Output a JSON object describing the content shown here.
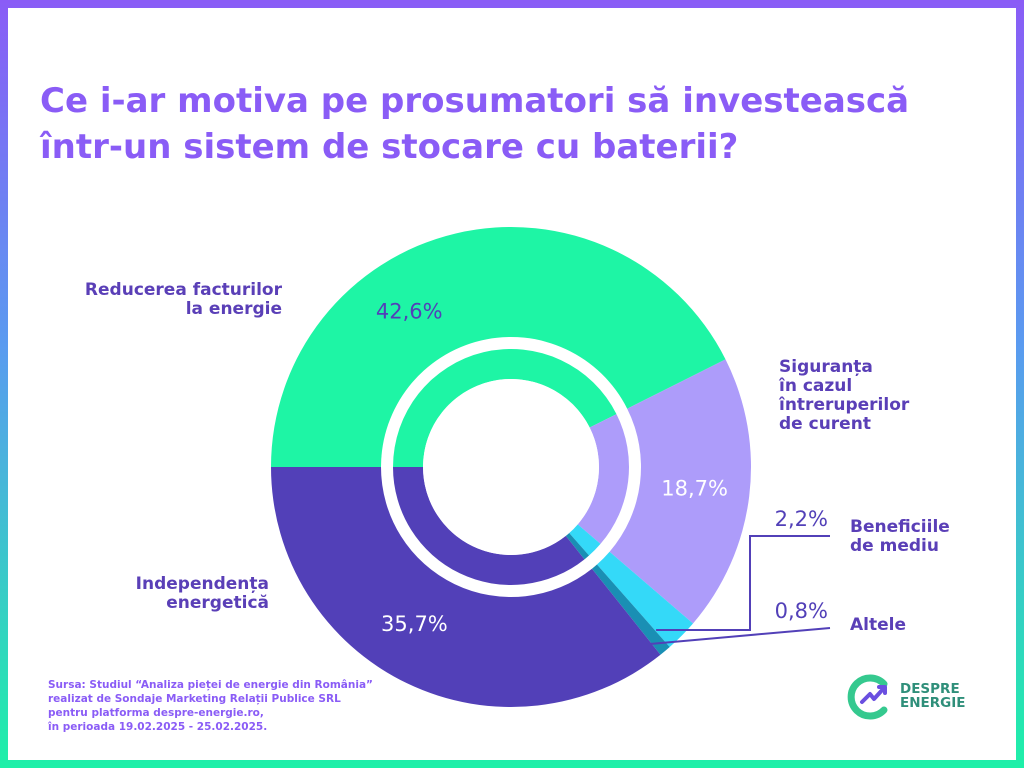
{
  "title": {
    "line1": "Ce i-ar motiva pe prosumatori să investească",
    "line2": "într-un sistem de stocare cu baterii?"
  },
  "colors": {
    "border_top": "#8a5cf6",
    "border_bottom": "#1ef0a8",
    "title": "#8a5cf6",
    "label_text": "#5a3fb7"
  },
  "chart_data": {
    "type": "pie",
    "title": "Ce i-ar motiva pe prosumatori să investească într-un sistem de stocare cu baterii?",
    "unit": "%",
    "slices": [
      {
        "name": "Reducerea facturilor la energie",
        "name_lines": [
          "Reducerea facturilor",
          "la energie"
        ],
        "value": 42.6,
        "label": "42,6%",
        "color": "#1ef5a5",
        "inner_color": "#1ef5a5"
      },
      {
        "name": "Siguranța în cazul întreruperilor de curent",
        "name_lines": [
          "Siguranța",
          "în cazul",
          "întreruperilor",
          "de curent"
        ],
        "value": 18.7,
        "label": "18,7%",
        "color": "#ad9cfa",
        "inner_color": "#ad9cfa"
      },
      {
        "name": "Beneficiile de mediu",
        "name_lines": [
          "Beneficiile",
          "de mediu"
        ],
        "value": 2.2,
        "label": "2,2%",
        "color": "#34d9f8",
        "inner_color": "#34d9f8"
      },
      {
        "name": "Altele",
        "name_lines": [
          "Altele"
        ],
        "value": 0.8,
        "label": "0,8%",
        "color": "#1a8fb4",
        "inner_color": "#1a8fb4"
      },
      {
        "name": "Independența energetică",
        "name_lines": [
          "Independența",
          "energetică"
        ],
        "value": 35.7,
        "label": "35,7%",
        "color": "#5240b8",
        "inner_color": "#5240b8"
      }
    ]
  },
  "source": {
    "lines": [
      "Sursa: Studiul “Analiza pieței de energie din România”",
      "realizat de Sondaje Marketing Relații Publice SRL",
      "pentru platforma despre-energie.ro,",
      "în perioada 19.02.2025 - 25.02.2025."
    ]
  },
  "logo": {
    "line1": "DESPRE",
    "line2": "ENERGIE",
    "icon": "despre-energie-logo-icon"
  }
}
